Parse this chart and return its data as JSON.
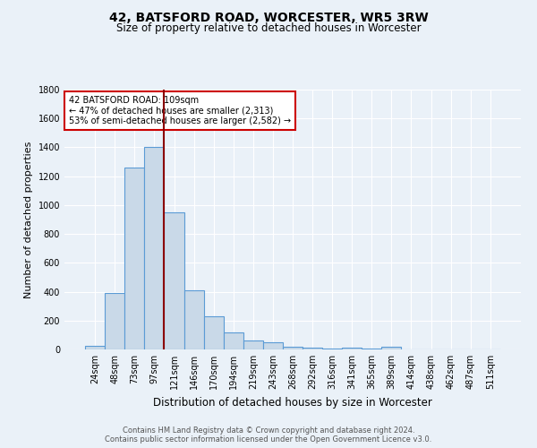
{
  "title": "42, BATSFORD ROAD, WORCESTER, WR5 3RW",
  "subtitle": "Size of property relative to detached houses in Worcester",
  "xlabel": "Distribution of detached houses by size in Worcester",
  "ylabel": "Number of detached properties",
  "footer_line1": "Contains HM Land Registry data © Crown copyright and database right 2024.",
  "footer_line2": "Contains public sector information licensed under the Open Government Licence v3.0.",
  "annotation_title": "42 BATSFORD ROAD: 109sqm",
  "annotation_line2": "← 47% of detached houses are smaller (2,313)",
  "annotation_line3": "53% of semi-detached houses are larger (2,582) →",
  "bar_labels": [
    "24sqm",
    "48sqm",
    "73sqm",
    "97sqm",
    "121sqm",
    "146sqm",
    "170sqm",
    "194sqm",
    "219sqm",
    "243sqm",
    "268sqm",
    "292sqm",
    "316sqm",
    "341sqm",
    "365sqm",
    "389sqm",
    "414sqm",
    "438sqm",
    "462sqm",
    "487sqm",
    "511sqm"
  ],
  "bar_values": [
    25,
    390,
    1260,
    1400,
    950,
    410,
    230,
    115,
    65,
    50,
    20,
    10,
    8,
    15,
    5,
    20,
    0,
    0,
    0,
    0,
    0
  ],
  "bar_color": "#c9d9e8",
  "bar_edge_color": "#5b9bd5",
  "vline_color": "#8b0000",
  "annotation_box_color": "#ffffff",
  "annotation_box_edge": "#cc0000",
  "background_color": "#eaf1f8",
  "grid_color": "#ffffff",
  "ylim": [
    0,
    1800
  ],
  "yticks": [
    0,
    200,
    400,
    600,
    800,
    1000,
    1200,
    1400,
    1600,
    1800
  ],
  "title_fontsize": 10,
  "subtitle_fontsize": 8.5,
  "ylabel_fontsize": 8,
  "xlabel_fontsize": 8.5,
  "tick_fontsize": 7,
  "annotation_fontsize": 7,
  "footer_fontsize": 6
}
